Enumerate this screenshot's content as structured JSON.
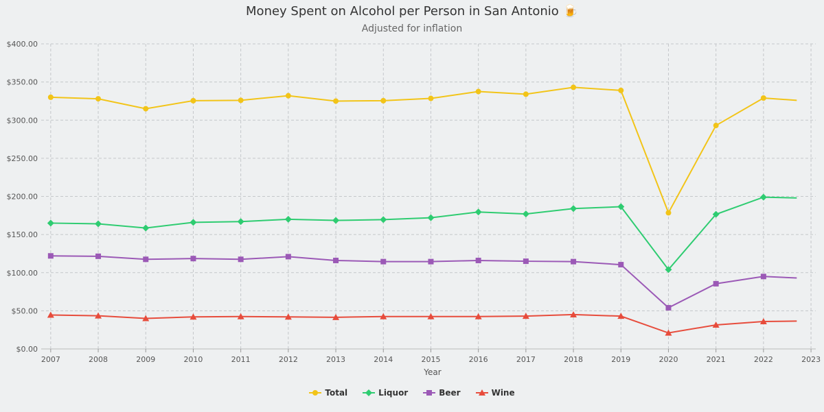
{
  "chart_data": {
    "type": "line",
    "title": "Money Spent on Alcohol per Person in San Antonio 🍺",
    "subtitle": "Adjusted for inflation",
    "xlabel": "Year",
    "ylabel": "",
    "xlim": [
      2006.8,
      2023.1
    ],
    "ylim": [
      0,
      400
    ],
    "x_ticks": [
      2007,
      2008,
      2009,
      2010,
      2011,
      2012,
      2013,
      2014,
      2015,
      2016,
      2017,
      2018,
      2019,
      2020,
      2021,
      2022,
      2023
    ],
    "y_ticks": [
      0,
      50,
      100,
      150,
      200,
      250,
      300,
      350,
      400
    ],
    "y_tick_labels": [
      "$0.00",
      "$50.00",
      "$100.00",
      "$150.00",
      "$200.00",
      "$250.00",
      "$300.00",
      "$350.00",
      "$400.00"
    ],
    "grid": true,
    "legend_position": "bottom-center",
    "x": [
      2007,
      2008,
      2009,
      2010,
      2011,
      2012,
      2013,
      2014,
      2015,
      2016,
      2017,
      2018,
      2019,
      2020,
      2021,
      2022,
      2022.7
    ],
    "series": [
      {
        "name": "Total",
        "color": "#f2c418",
        "marker": "circle",
        "values": [
          330,
          328,
          315,
          325.5,
          326,
          332,
          325,
          325.5,
          328.5,
          337.5,
          334,
          343,
          339,
          178.5,
          293,
          329,
          326
        ]
      },
      {
        "name": "Liquor",
        "color": "#2ecc71",
        "marker": "diamond",
        "values": [
          165,
          164,
          158.5,
          166,
          167,
          170,
          168.5,
          169.5,
          172,
          179.5,
          177,
          184,
          186.5,
          104,
          176.5,
          199,
          198
        ]
      },
      {
        "name": "Beer",
        "color": "#9b59b6",
        "marker": "square",
        "values": [
          122,
          121.5,
          117.5,
          118.5,
          117.5,
          121,
          116,
          114.5,
          114.5,
          116,
          115,
          114.5,
          110.5,
          54,
          85.5,
          95,
          93
        ]
      },
      {
        "name": "Wine",
        "color": "#e74c3c",
        "marker": "triangle",
        "values": [
          44.5,
          43.5,
          40,
          42,
          42.5,
          42,
          41.5,
          42.5,
          42.5,
          42.5,
          43,
          45,
          43,
          21,
          31.5,
          36,
          36.5
        ]
      }
    ]
  }
}
